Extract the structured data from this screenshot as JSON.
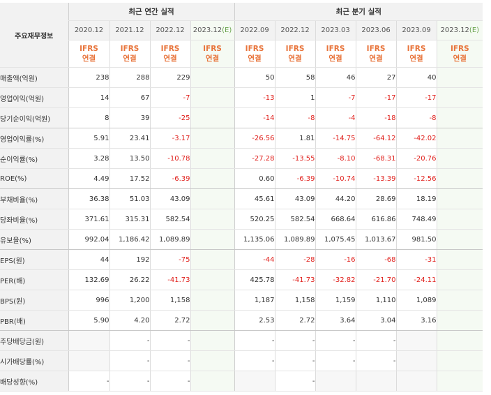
{
  "header": {
    "row_label": "주요재무정보",
    "annual_group": "최근 연간 실적",
    "quarter_group": "최근 분기 실적",
    "accounting": "IFRS",
    "basis": "연결"
  },
  "periods": [
    {
      "label": "2020.12",
      "est": ""
    },
    {
      "label": "2021.12",
      "est": ""
    },
    {
      "label": "2022.12",
      "est": ""
    },
    {
      "label": "2023.12",
      "est": "(E)"
    },
    {
      "label": "2022.09",
      "est": ""
    },
    {
      "label": "2022.12",
      "est": ""
    },
    {
      "label": "2023.03",
      "est": ""
    },
    {
      "label": "2023.06",
      "est": ""
    },
    {
      "label": "2023.09",
      "est": ""
    },
    {
      "label": "2023.12",
      "est": "(E)"
    }
  ],
  "rows": [
    {
      "label": "매출액(억원)",
      "values": [
        "238",
        "288",
        "229",
        "",
        "50",
        "58",
        "46",
        "27",
        "40",
        ""
      ]
    },
    {
      "label": "영업이익(억원)",
      "values": [
        "14",
        "67",
        "-7",
        "",
        "-13",
        "1",
        "-7",
        "-17",
        "-17",
        ""
      ]
    },
    {
      "label": "당기순이익(억원)",
      "values": [
        "8",
        "39",
        "-25",
        "",
        "-14",
        "-8",
        "-4",
        "-18",
        "-8",
        ""
      ]
    },
    {
      "label": "영업이익률(%)",
      "values": [
        "5.91",
        "23.41",
        "-3.17",
        "",
        "-26.56",
        "1.81",
        "-14.75",
        "-64.12",
        "-42.02",
        ""
      ]
    },
    {
      "label": "순이익률(%)",
      "values": [
        "3.28",
        "13.50",
        "-10.78",
        "",
        "-27.28",
        "-13.55",
        "-8.10",
        "-68.31",
        "-20.76",
        ""
      ]
    },
    {
      "label": "ROE(%)",
      "values": [
        "4.49",
        "17.52",
        "-6.39",
        "",
        "0.60",
        "-6.39",
        "-10.74",
        "-13.39",
        "-12.56",
        ""
      ]
    },
    {
      "label": "부채비율(%)",
      "values": [
        "36.38",
        "51.03",
        "43.09",
        "",
        "45.61",
        "43.09",
        "44.20",
        "28.69",
        "18.19",
        ""
      ]
    },
    {
      "label": "당좌비율(%)",
      "values": [
        "371.61",
        "315.31",
        "582.54",
        "",
        "520.25",
        "582.54",
        "668.64",
        "616.86",
        "748.49",
        ""
      ]
    },
    {
      "label": "유보율(%)",
      "values": [
        "992.04",
        "1,186.42",
        "1,089.89",
        "",
        "1,135.06",
        "1,089.89",
        "1,075.45",
        "1,013.67",
        "981.50",
        ""
      ]
    },
    {
      "label": "EPS(원)",
      "values": [
        "44",
        "192",
        "-75",
        "",
        "-44",
        "-28",
        "-16",
        "-68",
        "-31",
        ""
      ]
    },
    {
      "label": "PER(배)",
      "values": [
        "132.69",
        "26.22",
        "-41.73",
        "",
        "425.78",
        "-41.73",
        "-32.82",
        "-21.70",
        "-24.11",
        ""
      ]
    },
    {
      "label": "BPS(원)",
      "values": [
        "996",
        "1,200",
        "1,158",
        "",
        "1,187",
        "1,158",
        "1,159",
        "1,110",
        "1,089",
        ""
      ]
    },
    {
      "label": "PBR(배)",
      "values": [
        "5.90",
        "4.20",
        "2.72",
        "",
        "2.53",
        "2.72",
        "3.64",
        "3.04",
        "3.16",
        ""
      ]
    },
    {
      "label": "주당배당금(원)",
      "values": [
        "",
        "-",
        "-",
        "",
        "-",
        "-",
        "-",
        "-",
        "",
        ""
      ]
    },
    {
      "label": "시가배당률(%)",
      "values": [
        "",
        "-",
        "-",
        "",
        "-",
        "-",
        "-",
        "-",
        "",
        ""
      ]
    },
    {
      "label": "배당성향(%)",
      "values": [
        "-",
        "-",
        "-",
        "",
        "",
        "-",
        "",
        "",
        "",
        ""
      ]
    }
  ],
  "colors": {
    "header_bg": "#f2f2f2",
    "ifrs_orange": "#e8743b",
    "estimate_green": "#67a24b",
    "estimate_bg": "#f5faf3",
    "negative_red": "#e0201c",
    "empty_bg": "#f7f7f7"
  }
}
